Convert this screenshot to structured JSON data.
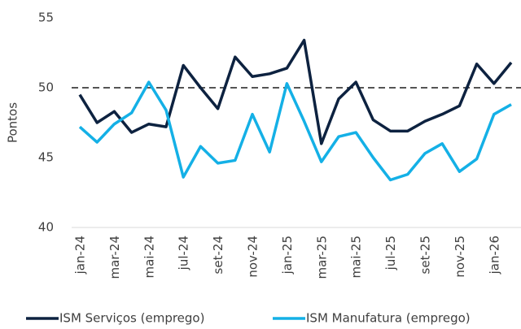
{
  "chart_data": {
    "type": "line",
    "y_label": "Pontos",
    "categories": [
      "jan-24",
      null,
      "mar-24",
      null,
      "mai-24",
      null,
      "jul-24",
      null,
      "set-24",
      null,
      "nov-24",
      null,
      "jan-25",
      null,
      "mar-25",
      null,
      "mai-25",
      null,
      "jul-25",
      null,
      "set-25",
      null,
      "nov-25",
      null,
      "jan-26",
      null
    ],
    "series": [
      {
        "name": "ISM Serviços (emprego)",
        "color": "#0d2240",
        "values": [
          49.5,
          47.5,
          48.3,
          46.8,
          47.4,
          47.2,
          51.6,
          50.0,
          48.5,
          52.2,
          50.8,
          51.0,
          51.4,
          53.4,
          46.0,
          49.2,
          50.4,
          47.7,
          46.9,
          46.9,
          47.6,
          48.1,
          48.7,
          51.7,
          50.3,
          51.8
        ]
      },
      {
        "name": "ISM Manufatura (emprego)",
        "color": "#14b0e6",
        "values": [
          47.2,
          46.1,
          47.4,
          48.2,
          50.4,
          48.4,
          43.6,
          45.8,
          44.6,
          44.8,
          48.1,
          45.4,
          50.3,
          47.6,
          44.7,
          46.5,
          46.8,
          45.0,
          43.4,
          43.8,
          45.3,
          46.0,
          44.0,
          44.9,
          48.1,
          48.8
        ]
      }
    ],
    "ylim": [
      40,
      55
    ],
    "yticks": [
      40,
      45,
      50,
      55
    ],
    "grid": false,
    "reference_line": 50,
    "legend": "bottom"
  }
}
